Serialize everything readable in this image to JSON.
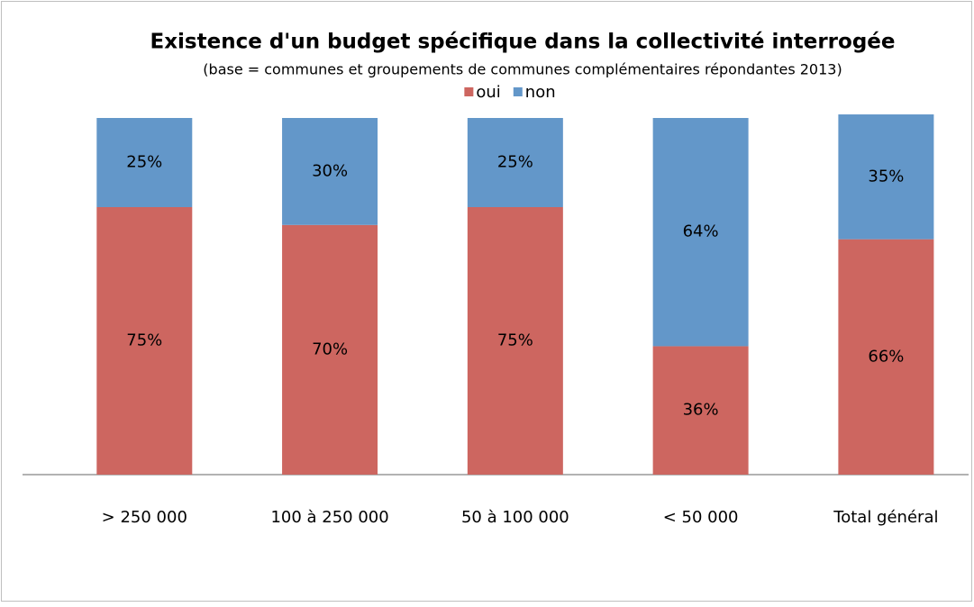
{
  "chart_data": {
    "type": "stacked_bar",
    "title": "Existence d'un budget spécifique  dans la collectivité interrogée",
    "subtitle": "(base = communes et groupements de communes complémentaires répondantes 2013)",
    "categories": [
      "> 250 000",
      "100 à 250 000",
      "50 à 100 000",
      "< 50 000",
      "Total général"
    ],
    "series": [
      {
        "name": "oui",
        "color": "#cd6660",
        "values": [
          75,
          70,
          75,
          36,
          66
        ],
        "value_labels": [
          "75%",
          "70%",
          "75%",
          "36%",
          "66%"
        ]
      },
      {
        "name": "non",
        "color": "#6397c9",
        "values": [
          25,
          30,
          25,
          64,
          35
        ],
        "value_labels": [
          "25%",
          "30%",
          "25%",
          "64%",
          "35%"
        ]
      }
    ],
    "ylim": [
      0,
      100
    ],
    "legend": "top"
  }
}
